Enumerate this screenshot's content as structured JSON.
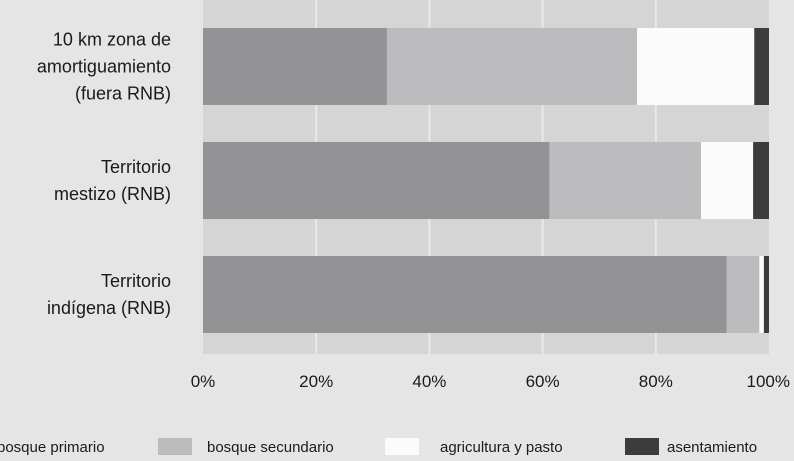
{
  "chart_data": {
    "type": "bar",
    "orientation": "horizontal",
    "stacked": true,
    "title": "",
    "xlabel": "",
    "ylabel": "",
    "xlim": [
      0,
      100
    ],
    "x_ticks": [
      "0%",
      "20%",
      "40%",
      "60%",
      "80%",
      "100%"
    ],
    "grid": true,
    "legend_position": "bottom",
    "categories": [
      [
        "10 km zona de",
        "amortiguamiento",
        "(fuera RNB)"
      ],
      [
        "Territorio",
        "mestizo (RNB)"
      ],
      [
        "Territorio",
        "indígena (RNB)"
      ]
    ],
    "series": [
      {
        "name": "bosque primario",
        "color": "#939395",
        "values": [
          32.5,
          61.2,
          92.5
        ]
      },
      {
        "name": "bosque secundario",
        "color": "#bcbcbe",
        "values": [
          44.2,
          26.8,
          5.8
        ]
      },
      {
        "name": "agricultura y pasto",
        "color": "#fbfbfb",
        "values": [
          20.7,
          9.2,
          0.8
        ]
      },
      {
        "name": "asentamiento",
        "color": "#3c3c3c",
        "values": [
          2.6,
          2.8,
          0.9
        ]
      }
    ]
  },
  "colors": {
    "background": "#e5e5e6",
    "plot_background": "#d5d5d6",
    "gridline": "#e9e9ea"
  }
}
